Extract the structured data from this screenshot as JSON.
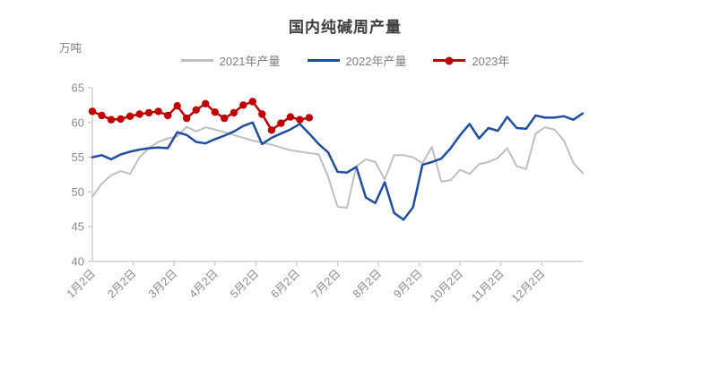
{
  "page": {
    "background": "#ffffff"
  },
  "chart_data": {
    "type": "line",
    "title": "国内纯碱周产量",
    "unit_label": "万吨",
    "ylabel": "万吨",
    "xlabel": "",
    "ylim": [
      40,
      65
    ],
    "y_ticks": [
      65,
      60,
      55,
      50,
      45,
      40
    ],
    "x_tick_labels": [
      "1月2日",
      "2月2日",
      "3月2日",
      "4月2日",
      "5月2日",
      "6月2日",
      "7月2日",
      "8月2日",
      "9月2日",
      "10月2日",
      "11月2日",
      "12月2日"
    ],
    "grid": false,
    "legend_position": "top",
    "axis_color": "#c8c8c8",
    "tick_label_color": "#8a8a8a",
    "series": [
      {
        "name": "2021年产量",
        "color": "#bfbfbf",
        "marker": "none",
        "values": [
          49.3,
          51.2,
          52.4,
          53.0,
          52.6,
          55.0,
          56.3,
          57.2,
          57.7,
          58.0,
          59.4,
          58.7,
          59.3,
          59.0,
          58.6,
          58.2,
          57.8,
          57.4,
          57.1,
          56.8,
          56.4,
          56.0,
          55.8,
          55.6,
          55.4,
          52.2,
          47.9,
          47.7,
          53.7,
          54.7,
          54.3,
          51.8,
          55.3,
          55.3,
          55.0,
          54.1,
          56.5,
          51.5,
          51.7,
          53.2,
          52.6,
          54.0,
          54.3,
          54.9,
          56.3,
          53.7,
          53.3,
          58.4,
          59.3,
          59.0,
          57.4,
          54.2,
          52.7
        ]
      },
      {
        "name": "2022年产量",
        "color": "#1f4e9f",
        "marker": "none",
        "values": [
          55.0,
          55.3,
          54.7,
          55.4,
          55.8,
          56.1,
          56.3,
          56.4,
          56.3,
          58.6,
          58.2,
          57.2,
          57.0,
          57.6,
          58.1,
          58.7,
          59.5,
          60.0,
          56.9,
          57.8,
          58.4,
          59.0,
          59.8,
          58.4,
          56.9,
          55.7,
          52.9,
          52.8,
          53.6,
          49.2,
          48.4,
          51.4,
          47.0,
          46.0,
          47.8,
          53.9,
          54.3,
          54.8,
          56.3,
          58.2,
          59.8,
          57.7,
          59.2,
          58.8,
          60.8,
          59.2,
          59.1,
          61.0,
          60.7,
          60.7,
          60.9,
          60.4,
          61.3
        ]
      },
      {
        "name": "2023年",
        "color": "#c00000",
        "marker": "circle",
        "values": [
          61.6,
          61.0,
          60.4,
          60.5,
          60.9,
          61.2,
          61.4,
          61.6,
          61.0,
          62.4,
          60.6,
          61.8,
          62.7,
          61.5,
          60.6,
          61.4,
          62.5,
          63.0,
          61.2,
          58.9,
          59.9,
          60.8,
          60.4,
          60.7
        ]
      }
    ]
  }
}
